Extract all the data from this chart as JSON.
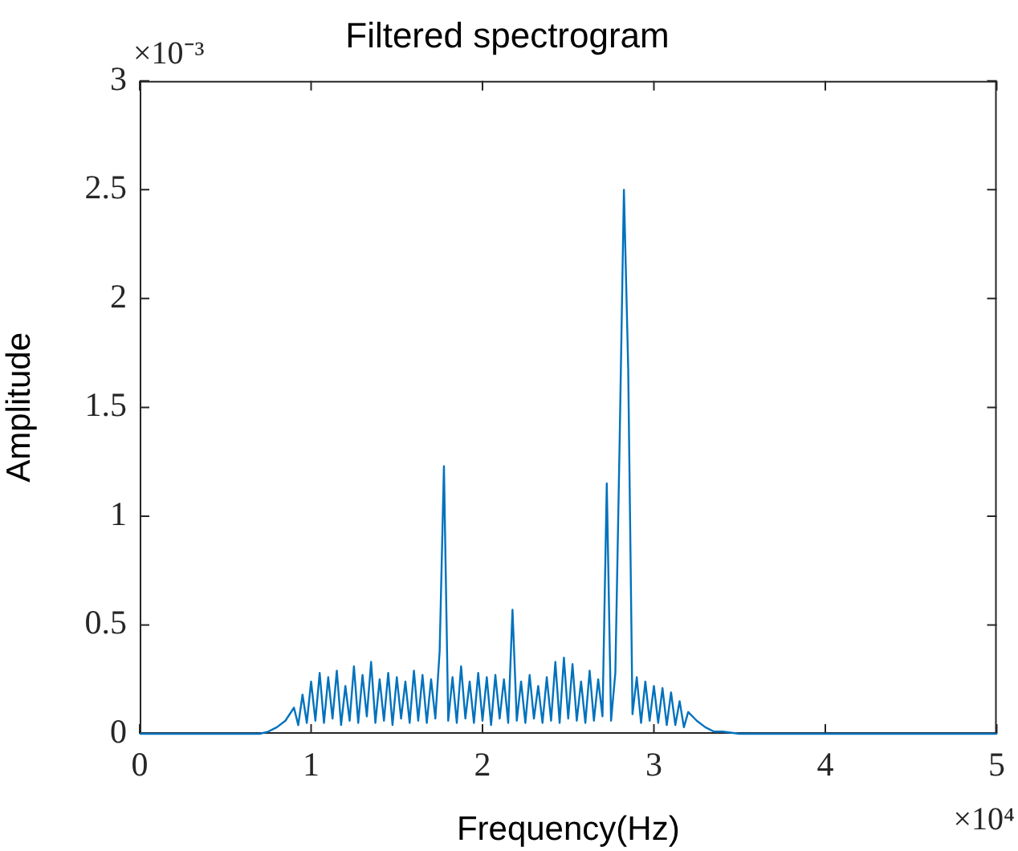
{
  "chart_data": {
    "type": "line",
    "title": "Filtered spectrogram",
    "xlabel": "Frequency(Hz)",
    "ylabel": "Amplitude",
    "annotations": [
      "×10⁻³",
      "×10⁴"
    ],
    "xlim": [
      0,
      5
    ],
    "xticks": [
      0,
      1,
      2,
      3,
      4,
      5
    ],
    "ylim": [
      0,
      3
    ],
    "yticks": [
      0,
      0.5,
      1,
      1.5,
      2,
      2.5,
      3
    ],
    "grid": false,
    "legend": false,
    "marker": "none",
    "line_style": "solid",
    "series": [
      {
        "color": "#0072bd",
        "x": [
          0,
          0.2,
          0.4,
          0.6,
          0.7,
          0.75,
          0.8,
          0.85,
          0.9,
          0.925,
          0.95,
          0.975,
          1,
          1.025,
          1.05,
          1.075,
          1.1,
          1.125,
          1.15,
          1.175,
          1.2,
          1.225,
          1.25,
          1.275,
          1.3,
          1.325,
          1.35,
          1.375,
          1.4,
          1.425,
          1.45,
          1.475,
          1.5,
          1.525,
          1.55,
          1.575,
          1.6,
          1.625,
          1.65,
          1.675,
          1.7,
          1.725,
          1.75,
          1.775,
          1.8,
          1.825,
          1.85,
          1.875,
          1.9,
          1.925,
          1.95,
          1.975,
          2,
          2.025,
          2.05,
          2.075,
          2.1,
          2.125,
          2.15,
          2.175,
          2.2,
          2.225,
          2.25,
          2.275,
          2.3,
          2.325,
          2.35,
          2.375,
          2.4,
          2.425,
          2.45,
          2.475,
          2.5,
          2.525,
          2.55,
          2.575,
          2.6,
          2.625,
          2.65,
          2.675,
          2.7,
          2.725,
          2.75,
          2.775,
          2.8,
          2.825,
          2.85,
          2.875,
          2.9,
          2.925,
          2.95,
          2.975,
          3,
          3.025,
          3.05,
          3.075,
          3.1,
          3.125,
          3.15,
          3.175,
          3.2,
          3.25,
          3.3,
          3.35,
          3.4,
          3.5,
          4,
          4.5,
          5
        ],
        "values": [
          0,
          0,
          0,
          0,
          0,
          0.01,
          0.03,
          0.06,
          0.12,
          0.04,
          0.18,
          0.05,
          0.24,
          0.06,
          0.28,
          0.05,
          0.26,
          0.07,
          0.29,
          0.04,
          0.22,
          0.06,
          0.31,
          0.05,
          0.27,
          0.08,
          0.33,
          0.05,
          0.25,
          0.06,
          0.28,
          0.04,
          0.26,
          0.07,
          0.24,
          0.05,
          0.29,
          0.06,
          0.27,
          0.05,
          0.25,
          0.07,
          0.38,
          1.23,
          0.06,
          0.26,
          0.05,
          0.31,
          0.07,
          0.24,
          0.05,
          0.28,
          0.06,
          0.26,
          0.04,
          0.27,
          0.07,
          0.25,
          0.05,
          0.57,
          0.06,
          0.24,
          0.05,
          0.27,
          0.07,
          0.22,
          0.05,
          0.26,
          0.06,
          0.33,
          0.05,
          0.35,
          0.07,
          0.32,
          0.06,
          0.24,
          0.05,
          0.29,
          0.06,
          0.25,
          0.08,
          1.15,
          0.06,
          0.28,
          1.34,
          2.5,
          1.68,
          0.09,
          0.26,
          0.05,
          0.24,
          0.06,
          0.22,
          0.05,
          0.21,
          0.04,
          0.19,
          0.04,
          0.15,
          0.03,
          0.1,
          0.06,
          0.03,
          0.01,
          0.01,
          0,
          0,
          0,
          0
        ]
      }
    ]
  }
}
